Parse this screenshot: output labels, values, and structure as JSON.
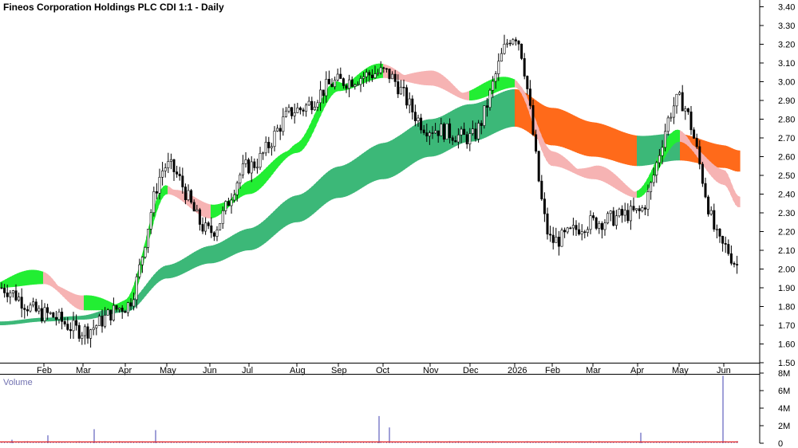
{
  "chart_data": {
    "type": "candlestick",
    "title": "Fineos Corporation Holdings PLC CDI 1:1 - Daily",
    "price_axis": {
      "ticks": [
        "1.50",
        "1.60",
        "1.70",
        "1.80",
        "1.90",
        "2.00",
        "2.10",
        "2.20",
        "2.30",
        "2.40",
        "2.50",
        "2.60",
        "2.70",
        "2.80",
        "2.90",
        "3.00",
        "3.10",
        "3.20",
        "3.30",
        "3.40"
      ],
      "range": [
        1.5,
        3.4
      ]
    },
    "month_labels": [
      "Feb",
      "Mar",
      "Apr",
      "May",
      "Jun",
      "Jul",
      "Aug",
      "Sep",
      "Oct",
      "Nov",
      "Dec",
      "2026",
      "Feb",
      "Mar",
      "Apr",
      "May",
      "Jun"
    ],
    "price_series": {
      "approx_close_at_month_marks": [
        1.76,
        1.67,
        1.8,
        2.55,
        2.2,
        2.55,
        2.85,
        3.0,
        3.05,
        2.75,
        2.7,
        3.25,
        2.15,
        2.25,
        2.3,
        2.9,
        2.12
      ],
      "start": 1.9,
      "last": 2.02,
      "high": 3.35,
      "low": 1.56
    },
    "moving_average_bands": [
      {
        "role": "short-term",
        "up_color": "#22ee33",
        "down_color": "#ff6a1a"
      },
      {
        "role": "long-term",
        "up_color": "#3cb878",
        "down_color": "#ff6a1a"
      }
    ],
    "short_term_band_approx": [
      1.92,
      1.78,
      1.78,
      2.4,
      2.27,
      2.4,
      2.62,
      2.95,
      3.02,
      2.98,
      2.9,
      2.97,
      2.55,
      2.48,
      2.38,
      2.68,
      2.45
    ],
    "long_term_band_approx": [
      1.72,
      1.73,
      1.77,
      1.95,
      2.03,
      2.1,
      2.25,
      2.38,
      2.48,
      2.6,
      2.68,
      2.76,
      2.66,
      2.6,
      2.55,
      2.58,
      2.54
    ],
    "volume": {
      "label": "Volume",
      "ticks": [
        "0",
        "2M",
        "4M",
        "6M",
        "8M"
      ],
      "range": [
        0,
        8000000
      ],
      "notable_spikes": [
        {
          "near": "Jan",
          "value": 400000
        },
        {
          "near": "Feb",
          "value": 900000
        },
        {
          "near": "Mar",
          "value": 1600000
        },
        {
          "near": "May",
          "value": 1500000
        },
        {
          "near": "Oct",
          "value": 3100000
        },
        {
          "near": "Oct",
          "value": 1800000
        },
        {
          "near": "Apr",
          "value": 1200000
        },
        {
          "near": "Jun",
          "value": 7700000
        }
      ]
    },
    "grid": false
  },
  "colors": {
    "candle": "#000000",
    "short_up": "#22ee33",
    "short_down": "#ff6a1a",
    "short_pink": "#f6b3b3",
    "long_up": "#3cb878",
    "long_down": "#ff6a1a",
    "volume_bar": "#7878c8",
    "volume_avg": "#e02020"
  }
}
